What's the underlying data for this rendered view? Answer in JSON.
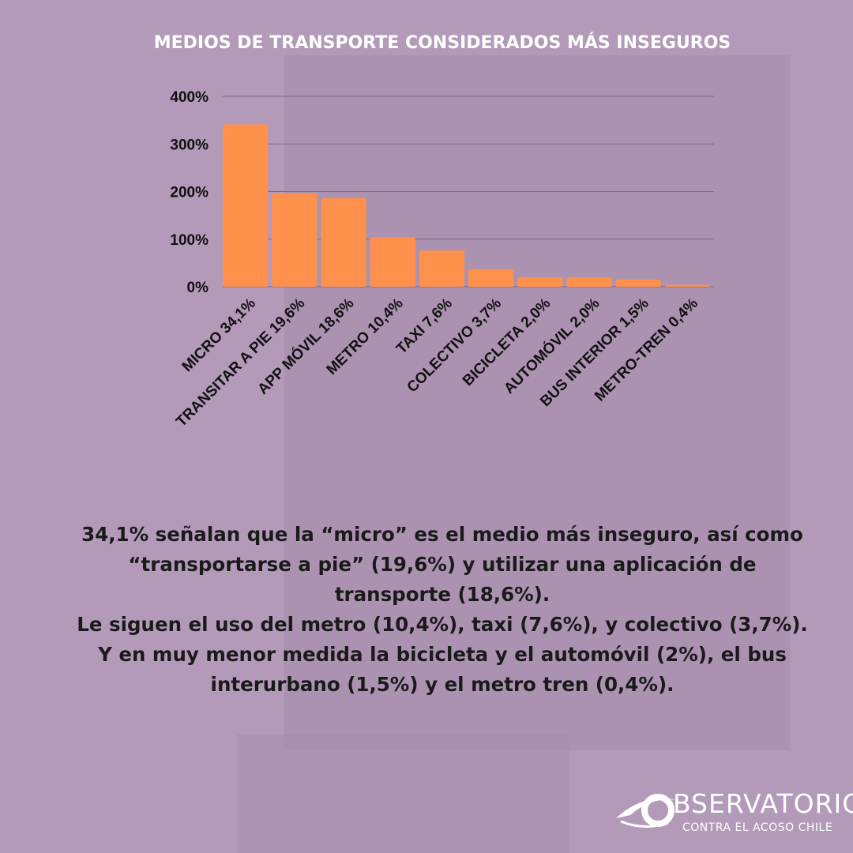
{
  "chart_data": {
    "type": "bar",
    "title": "MEDIOS DE TRANSPORTE CONSIDERADOS MÁS INSEGUROS",
    "xlabel": "",
    "ylabel": "",
    "categories": [
      "MICRO 34,1%",
      "TRANSITAR A PIE 19,6%",
      "APP MÓVIL 18,6%",
      "METRO 10,4%",
      "TAXI 7,6%",
      "COLECTIVO 3,7%",
      "BICICLETA 2,0%",
      "AUTOMÓVIL 2,0%",
      "BUS INTERIOR 1,5%",
      "METRO-TREN 0,4%"
    ],
    "values": [
      341,
      196,
      186,
      104,
      76,
      37,
      20,
      20,
      15,
      4
    ],
    "ylim": [
      0,
      400
    ],
    "yticks": [
      "0%",
      "100%",
      "200%",
      "300%",
      "400%"
    ],
    "grid": true,
    "bar_color": "#ff914d"
  },
  "body": {
    "lines": [
      "34,1% señalan que la “micro” es el medio más inseguro, así como",
      "“transportarse a pie” (19,6%) y utilizar una aplicación de",
      "transporte (18,6%).",
      "Le siguen el uso del metro (10,4%), taxi (7,6%), y colectivo (3,7%).",
      "Y en muy menor medida la bicicleta y el automóvil (2%), el bus",
      "interurbano (1,5%) y el metro tren (0,4%)."
    ]
  },
  "logo": {
    "main": "BSERVATORIO",
    "sub": "CONTRA EL ACOSO CHILE"
  }
}
